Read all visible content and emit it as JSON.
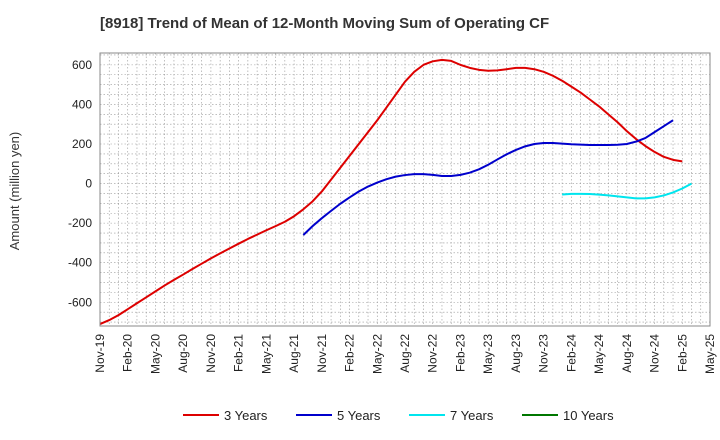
{
  "chart_data": {
    "type": "line",
    "title": "[8918]  Trend of Mean of 12-Month Moving Sum of Operating CF",
    "xlabel": "",
    "ylabel": "Amount (million yen)",
    "ylim": [
      -720,
      660
    ],
    "yticks": [
      600,
      400,
      200,
      0,
      -200,
      -400,
      -600
    ],
    "ytick_labels": [
      "600",
      "400",
      "200",
      "0",
      "-200",
      "-400",
      "-600"
    ],
    "x_tick_labels": [
      "Nov-19",
      "Feb-20",
      "May-20",
      "Aug-20",
      "Nov-20",
      "Feb-21",
      "May-21",
      "Aug-21",
      "Nov-21",
      "Feb-22",
      "May-22",
      "Aug-22",
      "Nov-22",
      "Feb-23",
      "May-23",
      "Aug-23",
      "Nov-23",
      "Feb-24",
      "May-24",
      "Aug-24",
      "Nov-24",
      "Feb-25",
      "May-25"
    ],
    "grid": true,
    "legend_position": "bottom",
    "series": [
      {
        "name": "3 Years",
        "color": "#dd0000",
        "start_index": 0,
        "values": [
          -710,
          -690,
          -665,
          -635,
          -605,
          -575,
          -545,
          -515,
          -487,
          -460,
          -432,
          -405,
          -378,
          -353,
          -328,
          -304,
          -280,
          -258,
          -236,
          -215,
          -193,
          -165,
          -130,
          -90,
          -40,
          20,
          80,
          140,
          200,
          260,
          320,
          385,
          450,
          515,
          565,
          600,
          618,
          625,
          620,
          600,
          585,
          575,
          570,
          572,
          578,
          585,
          585,
          578,
          565,
          545,
          520,
          490,
          460,
          425,
          390,
          350,
          310,
          265,
          225,
          190,
          160,
          135,
          120,
          112
        ]
      },
      {
        "name": "5 Years",
        "color": "#0000cc",
        "start_index": 22,
        "values": [
          -260,
          -215,
          -175,
          -138,
          -102,
          -70,
          -40,
          -15,
          5,
          22,
          35,
          43,
          48,
          48,
          44,
          38,
          38,
          44,
          55,
          72,
          95,
          122,
          148,
          170,
          188,
          200,
          205,
          205,
          202,
          199,
          197,
          195,
          195,
          195,
          196,
          200,
          212,
          230,
          260,
          290,
          320
        ]
      },
      {
        "name": "7 Years",
        "color": "#00e5ee",
        "start_index": 50,
        "values": [
          -55,
          -52,
          -52,
          -53,
          -56,
          -60,
          -65,
          -70,
          -75,
          -75,
          -70,
          -60,
          -45,
          -25,
          0
        ]
      },
      {
        "name": "10 Years",
        "color": "#007700",
        "start_index": 0,
        "values": []
      }
    ]
  }
}
